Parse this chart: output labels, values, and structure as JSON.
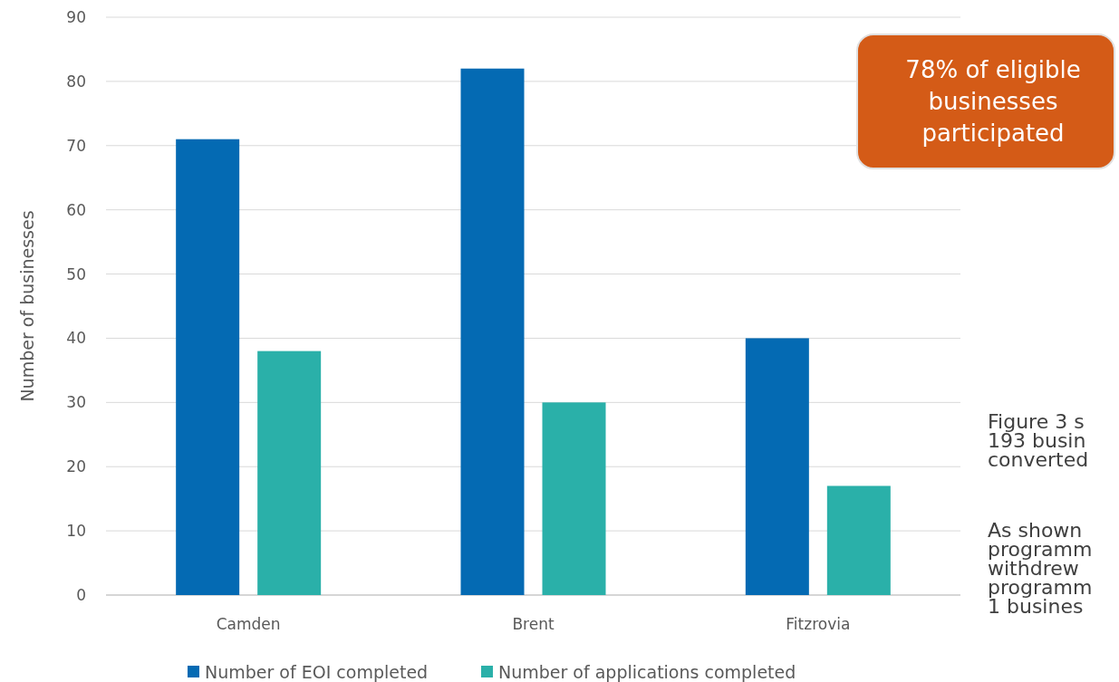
{
  "chart_data": {
    "type": "bar",
    "ylabel": "Number of businesses",
    "categories": [
      "Camden",
      "Brent",
      "Fitzrovia"
    ],
    "series": [
      {
        "name": "Number of EOI completed",
        "color": "#046ab3",
        "values": [
          71,
          82,
          40
        ]
      },
      {
        "name": "Number of applications completed",
        "color": "#2ab0a9",
        "values": [
          38,
          30,
          17
        ]
      }
    ],
    "ylim": [
      0,
      90
    ],
    "yticks": [
      0,
      10,
      20,
      30,
      40,
      50,
      60,
      70,
      80,
      90
    ],
    "grid": "y",
    "legend": "bottom",
    "annotations": [
      "78% of eligible businesses participated",
      "Figure 3 s",
      "193 busin",
      "converted",
      "As shown",
      "programm",
      "withdrew",
      "programm",
      "1 busines"
    ]
  }
}
